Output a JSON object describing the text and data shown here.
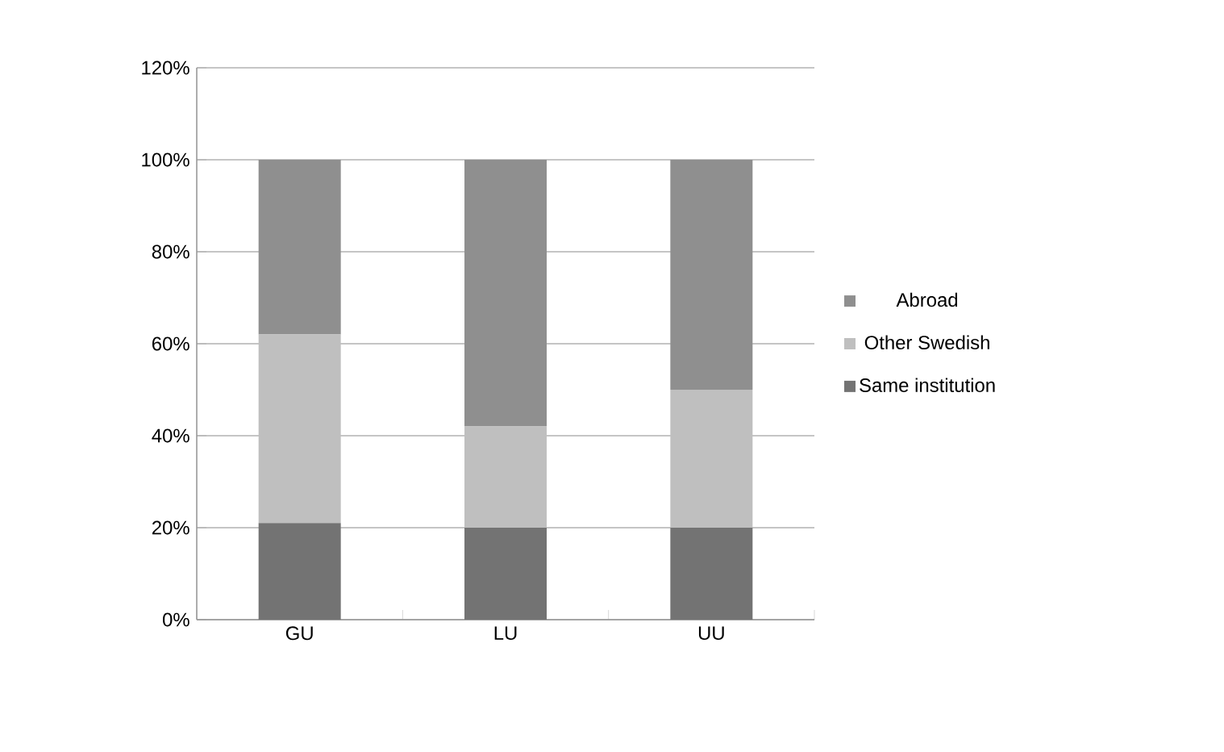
{
  "chart_data": {
    "type": "bar",
    "stacked": true,
    "categories": [
      "GU",
      "LU",
      "UU"
    ],
    "series": [
      {
        "name": "Same institution",
        "color": "#737373",
        "values": [
          21,
          20,
          20
        ]
      },
      {
        "name": "Other Swedish",
        "color": "#bfbfbf",
        "values": [
          41,
          22,
          30
        ]
      },
      {
        "name": "Abroad",
        "color": "#8f8f8f",
        "values": [
          38,
          58,
          50
        ]
      }
    ],
    "ylim": [
      0,
      120
    ],
    "yticks": [
      {
        "value": 0,
        "label": "0%"
      },
      {
        "value": 20,
        "label": "20%"
      },
      {
        "value": 40,
        "label": "40%"
      },
      {
        "value": 60,
        "label": "60%"
      },
      {
        "value": 80,
        "label": "80%"
      },
      {
        "value": 100,
        "label": "100%"
      },
      {
        "value": 120,
        "label": "120%"
      }
    ],
    "grid": "y",
    "legend": "right"
  }
}
